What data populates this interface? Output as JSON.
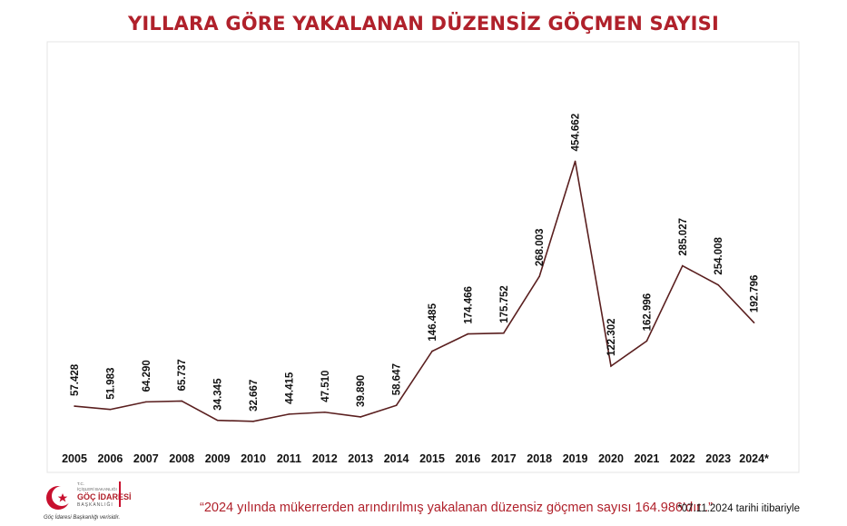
{
  "title": "YILLARA GÖRE YAKALANAN DÜZENSİZ GÖÇMEN SAYISI",
  "quote": "“2024 yılında mükerrerden arındırılmış yakalanan düzensiz göçmen sayısı 164.986’dır .”",
  "note": "*07.11.2024 tarihi itibariyle",
  "logo": {
    "line1": "T.C.",
    "line2": "İÇİŞLERİ BAKANLIĞI",
    "line3": "GÖÇ İDARESİ",
    "line4": "BAŞKANLIĞI",
    "caption": "Göç İdaresi Başkanlığı verisidir."
  },
  "colors": {
    "accent": "#b0212b",
    "line": "#5a1f1f"
  },
  "chart_data": {
    "type": "line",
    "title": "YILLARA GÖRE YAKALANAN DÜZENSİZ GÖÇMEN SAYISI",
    "xlabel": "",
    "ylabel": "",
    "grid": false,
    "categories": [
      "2005",
      "2006",
      "2007",
      "2008",
      "2009",
      "2010",
      "2011",
      "2012",
      "2013",
      "2014",
      "2015",
      "2016",
      "2017",
      "2018",
      "2019",
      "2020",
      "2021",
      "2022",
      "2023",
      "2024*"
    ],
    "values": [
      57428,
      51983,
      64290,
      65737,
      34345,
      32667,
      44415,
      47510,
      39890,
      58647,
      146485,
      174466,
      175752,
      268003,
      454662,
      122302,
      162996,
      285027,
      254008,
      192796
    ],
    "labels": [
      "57.428",
      "51.983",
      "64.290",
      "65.737",
      "34.345",
      "32.667",
      "44.415",
      "47.510",
      "39.890",
      "58.647",
      "146.485",
      "174.466",
      "175.752",
      "268.003",
      "454.662",
      "122.302",
      "162.996",
      "285.027",
      "254.008",
      "192.796"
    ],
    "ylim": [
      0,
      500000
    ]
  }
}
